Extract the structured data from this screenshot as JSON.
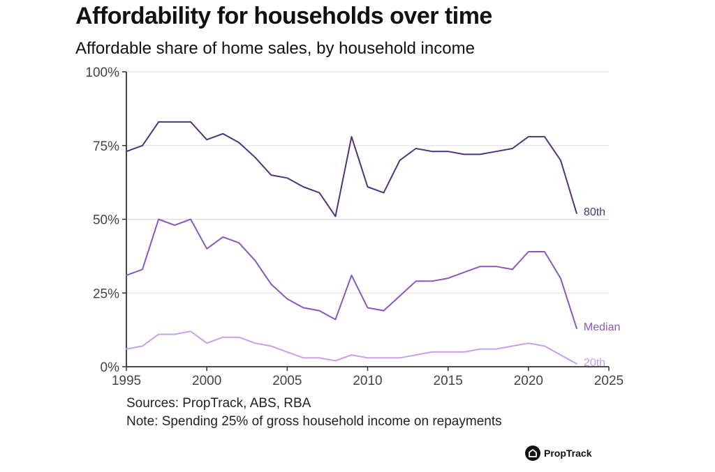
{
  "title": "Affordability for households over time",
  "subtitle": "Affordable share of home sales, by household income",
  "footnotes": {
    "sources": "Sources: PropTrack, ABS, RBA",
    "note": "Note: Spending 25% of gross household income on repayments"
  },
  "brand": {
    "name": "PropTrack",
    "icon": "house-icon"
  },
  "colors": {
    "p80": "#4f3478",
    "median": "#8a57bd",
    "p20": "#c6a0e8",
    "grid": "#dddddd",
    "axis": "#333333"
  },
  "chart_data": {
    "type": "line",
    "title": "Affordability for households over time",
    "subtitle": "Affordable share of home sales, by household income",
    "xlabel": "",
    "ylabel": "",
    "xlim": [
      1995,
      2025
    ],
    "ylim": [
      0,
      100
    ],
    "x_ticks": [
      "1995",
      "2000",
      "2005",
      "2010",
      "2015",
      "2020",
      "2025"
    ],
    "y_ticks": [
      "0%",
      "25%",
      "50%",
      "75%",
      "100%"
    ],
    "grid": "horizontal",
    "legend": "direct labels at line ends",
    "x": [
      1995,
      1996,
      1997,
      1998,
      1999,
      2000,
      2001,
      2002,
      2003,
      2004,
      2005,
      2006,
      2007,
      2008,
      2009,
      2010,
      2011,
      2012,
      2013,
      2014,
      2015,
      2016,
      2017,
      2018,
      2019,
      2020,
      2021,
      2022,
      2023
    ],
    "series": [
      {
        "name": "80th",
        "color": "#4f3478",
        "values": [
          73,
          75,
          83,
          83,
          83,
          77,
          79,
          76,
          71,
          65,
          64,
          61,
          59,
          51,
          78,
          61,
          59,
          70,
          74,
          73,
          73,
          72,
          72,
          73,
          74,
          78,
          78,
          70,
          52
        ]
      },
      {
        "name": "Median",
        "color": "#8a57bd",
        "values": [
          31,
          33,
          50,
          48,
          50,
          40,
          44,
          42,
          36,
          28,
          23,
          20,
          19,
          16,
          31,
          20,
          19,
          24,
          29,
          29,
          30,
          32,
          34,
          34,
          33,
          39,
          39,
          30,
          13
        ]
      },
      {
        "name": "20th",
        "color": "#c6a0e8",
        "values": [
          6,
          7,
          11,
          11,
          12,
          8,
          10,
          10,
          8,
          7,
          5,
          3,
          3,
          2,
          4,
          3,
          3,
          3,
          4,
          5,
          5,
          5,
          6,
          6,
          7,
          8,
          7,
          4,
          1
        ]
      }
    ]
  }
}
